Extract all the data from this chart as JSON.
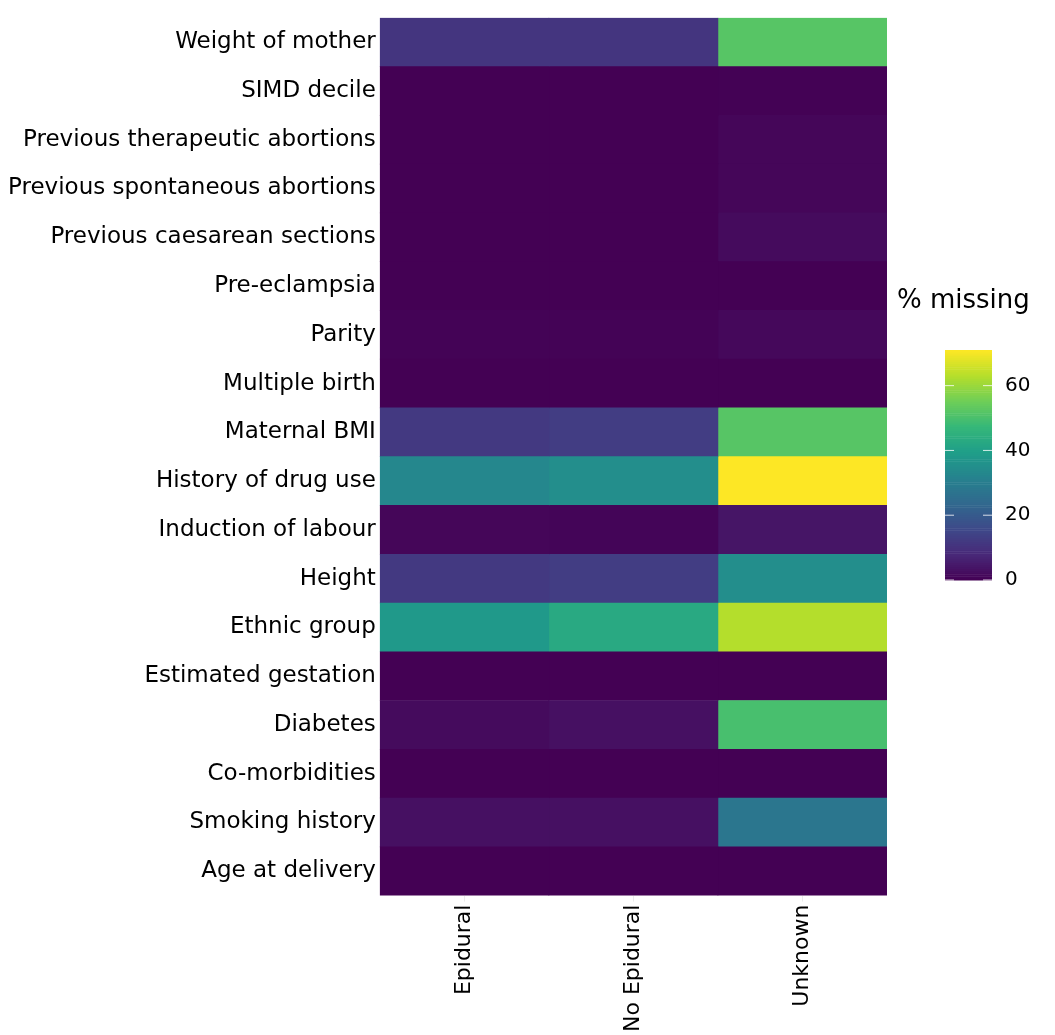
{
  "chart_data": {
    "type": "heatmap",
    "clabel": "% missing",
    "categories": [
      "Epidural",
      "No Epidural",
      "Unknown"
    ],
    "y_categories": [
      "Weight of mother",
      "SIMD decile",
      "Previous therapeutic abortions",
      "Previous spontaneous abortions",
      "Previous caesarean sections",
      "Pre-eclampsia",
      "Parity",
      "Multiple birth",
      "Maternal BMI",
      "History of drug use",
      "Induction of labour",
      "Height",
      "Ethnic group",
      "Estimated gestation",
      "Diabetes",
      "Co-morbidities",
      "Smoking history",
      "Age at delivery"
    ],
    "cells": [
      [
        11,
        11,
        52
      ],
      [
        0,
        0,
        0.3
      ],
      [
        0,
        0,
        1
      ],
      [
        0,
        0,
        1
      ],
      [
        0,
        0,
        2
      ],
      [
        0,
        0,
        0
      ],
      [
        0.5,
        0.5,
        1.5
      ],
      [
        0,
        0,
        0
      ],
      [
        12,
        13,
        52
      ],
      [
        33,
        35,
        71
      ],
      [
        1,
        0.8,
        4
      ],
      [
        12,
        13,
        35
      ],
      [
        38,
        43,
        63
      ],
      [
        0,
        0,
        0
      ],
      [
        2,
        3,
        50
      ],
      [
        0,
        0,
        0
      ],
      [
        3,
        3,
        28
      ],
      [
        0,
        0,
        0
      ]
    ],
    "clim": [
      0,
      71
    ],
    "cticks": [
      0,
      20,
      40,
      60
    ]
  }
}
